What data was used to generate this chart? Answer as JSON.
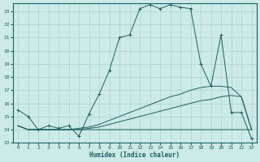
{
  "title": "",
  "xlabel": "Humidex (Indice chaleur)",
  "background_color": "#cceae7",
  "grid_color": "#aad4d0",
  "line_color": "#1a6060",
  "xlim": [
    -0.5,
    23.5
  ],
  "ylim": [
    13,
    23.6
  ],
  "xticks": [
    0,
    1,
    2,
    3,
    4,
    5,
    6,
    7,
    8,
    9,
    10,
    11,
    12,
    13,
    14,
    15,
    16,
    17,
    18,
    19,
    20,
    21,
    22,
    23
  ],
  "yticks": [
    13,
    14,
    15,
    16,
    17,
    18,
    19,
    20,
    21,
    22,
    23
  ],
  "curve1_x": [
    0,
    1,
    2,
    3,
    4,
    5,
    6,
    7,
    8,
    9,
    10,
    11,
    12,
    13,
    14,
    15,
    16,
    17,
    18,
    19,
    20,
    21,
    22,
    23
  ],
  "curve1_y": [
    15.5,
    15.0,
    14.0,
    14.3,
    14.1,
    14.3,
    13.5,
    15.2,
    16.7,
    18.5,
    21.0,
    21.2,
    23.2,
    23.5,
    23.2,
    23.5,
    23.3,
    23.2,
    19.0,
    17.3,
    21.2,
    15.3,
    15.3,
    13.3
  ],
  "curve2_x": [
    0,
    1,
    2,
    3,
    4,
    5,
    6,
    7,
    8,
    9,
    10,
    11,
    12,
    13,
    14,
    15,
    16,
    17,
    18,
    19,
    20,
    21,
    22,
    23
  ],
  "curve2_y": [
    14.3,
    14.0,
    14.0,
    14.0,
    14.0,
    14.0,
    14.0,
    14.0,
    14.0,
    14.0,
    14.0,
    14.0,
    14.0,
    14.0,
    14.0,
    14.0,
    14.0,
    14.0,
    14.0,
    14.0,
    14.0,
    14.0,
    14.0,
    14.0
  ],
  "curve3_x": [
    0,
    1,
    2,
    3,
    4,
    5,
    6,
    7,
    8,
    9,
    10,
    11,
    12,
    13,
    14,
    15,
    16,
    17,
    18,
    19,
    20,
    21,
    22,
    23
  ],
  "curve3_y": [
    14.3,
    14.0,
    14.0,
    14.0,
    14.0,
    14.0,
    14.0,
    14.1,
    14.2,
    14.4,
    14.6,
    14.8,
    15.0,
    15.2,
    15.4,
    15.6,
    15.8,
    16.0,
    16.2,
    16.3,
    16.5,
    16.6,
    16.5,
    14.0
  ],
  "curve4_x": [
    0,
    1,
    2,
    3,
    4,
    5,
    6,
    7,
    8,
    9,
    10,
    11,
    12,
    13,
    14,
    15,
    16,
    17,
    18,
    19,
    20,
    21,
    22,
    23
  ],
  "curve4_y": [
    14.3,
    14.0,
    14.0,
    14.0,
    14.0,
    14.0,
    14.1,
    14.2,
    14.4,
    14.7,
    15.0,
    15.3,
    15.6,
    15.9,
    16.2,
    16.5,
    16.7,
    17.0,
    17.2,
    17.3,
    17.3,
    17.2,
    16.5,
    14.0
  ]
}
